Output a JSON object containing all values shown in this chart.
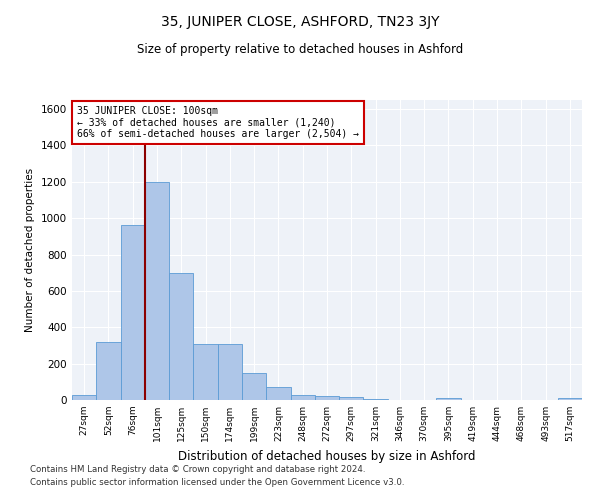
{
  "title": "35, JUNIPER CLOSE, ASHFORD, TN23 3JY",
  "subtitle": "Size of property relative to detached houses in Ashford",
  "xlabel": "Distribution of detached houses by size in Ashford",
  "ylabel": "Number of detached properties",
  "categories": [
    "27sqm",
    "52sqm",
    "76sqm",
    "101sqm",
    "125sqm",
    "150sqm",
    "174sqm",
    "199sqm",
    "223sqm",
    "248sqm",
    "272sqm",
    "297sqm",
    "321sqm",
    "346sqm",
    "370sqm",
    "395sqm",
    "419sqm",
    "444sqm",
    "468sqm",
    "493sqm",
    "517sqm"
  ],
  "values": [
    30,
    320,
    960,
    1200,
    700,
    310,
    310,
    150,
    70,
    30,
    20,
    15,
    5,
    0,
    0,
    10,
    0,
    0,
    0,
    0,
    10
  ],
  "bar_color": "#aec6e8",
  "bar_edge_color": "#5b9bd5",
  "vline_x_index": 3,
  "vline_color": "#8b0000",
  "annotation_text_line1": "35 JUNIPER CLOSE: 100sqm",
  "annotation_text_line2": "← 33% of detached houses are smaller (1,240)",
  "annotation_text_line3": "66% of semi-detached houses are larger (2,504) →",
  "annotation_box_color": "#ffffff",
  "annotation_box_edge": "#cc0000",
  "ylim": [
    0,
    1650
  ],
  "yticks": [
    0,
    200,
    400,
    600,
    800,
    1000,
    1200,
    1400,
    1600
  ],
  "background_color": "#eef2f8",
  "grid_color": "#ffffff",
  "footnote1": "Contains HM Land Registry data © Crown copyright and database right 2024.",
  "footnote2": "Contains public sector information licensed under the Open Government Licence v3.0."
}
